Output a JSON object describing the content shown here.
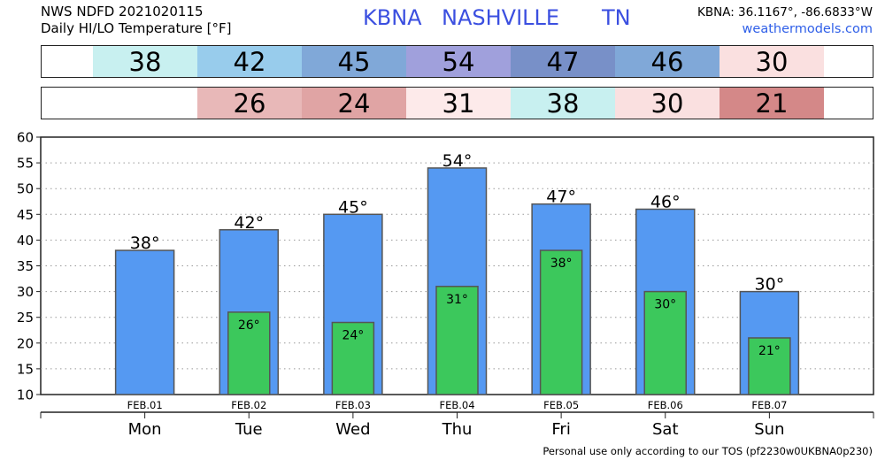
{
  "header": {
    "source_line": "NWS NDFD 2021020115",
    "product_line": "Daily HI/LO Temperature [°F]",
    "station": "KBNA",
    "city": "NASHVILLE",
    "state": "TN",
    "coords": "KBNA: 36.1167°, -86.6833°W",
    "site": "weathermodels.com"
  },
  "footer": {
    "tos": "Personal use only according to our TOS (pf2230w0UKBNA0p230)"
  },
  "highs_strip": [
    {
      "text": "38",
      "color": "#c8f0f0"
    },
    {
      "text": "42",
      "color": "#98ccec"
    },
    {
      "text": "45",
      "color": "#80a8d8"
    },
    {
      "text": "54",
      "color": "#a0a0dc"
    },
    {
      "text": "47",
      "color": "#7890c8"
    },
    {
      "text": "46",
      "color": "#80a8d8"
    },
    {
      "text": "30",
      "color": "#fae0e0"
    }
  ],
  "lows_strip": [
    {
      "text": "",
      "color": "#ffffff"
    },
    {
      "text": "26",
      "color": "#e8b8b8"
    },
    {
      "text": "24",
      "color": "#e0a4a4"
    },
    {
      "text": "31",
      "color": "#fdeaea"
    },
    {
      "text": "38",
      "color": "#c8f0f0"
    },
    {
      "text": "30",
      "color": "#fae0e0"
    },
    {
      "text": "21",
      "color": "#d48888"
    }
  ],
  "colors": {
    "high_bar": "#5599f2",
    "low_bar": "#3cc85c",
    "bar_edge": "#555555"
  },
  "chart_data": {
    "type": "bar",
    "categories": [
      "FEB.01",
      "FEB.02",
      "FEB.03",
      "FEB.04",
      "FEB.05",
      "FEB.06",
      "FEB.07"
    ],
    "day_labels": [
      "Mon",
      "Tue",
      "Wed",
      "Thu",
      "Fri",
      "Sat",
      "Sun"
    ],
    "series": [
      {
        "values": [
          38,
          42,
          45,
          54,
          47,
          46,
          30
        ]
      },
      {
        "values": [
          null,
          26,
          24,
          31,
          38,
          30,
          21
        ]
      }
    ],
    "value_labels_high": [
      "38°",
      "42°",
      "45°",
      "54°",
      "47°",
      "46°",
      "30°"
    ],
    "value_labels_low": [
      "",
      "26°",
      "24°",
      "31°",
      "38°",
      "30°",
      "21°"
    ],
    "ylim": [
      10,
      60
    ],
    "yticks": [
      10,
      15,
      20,
      25,
      30,
      35,
      40,
      45,
      50,
      55,
      60
    ],
    "grid": true
  }
}
